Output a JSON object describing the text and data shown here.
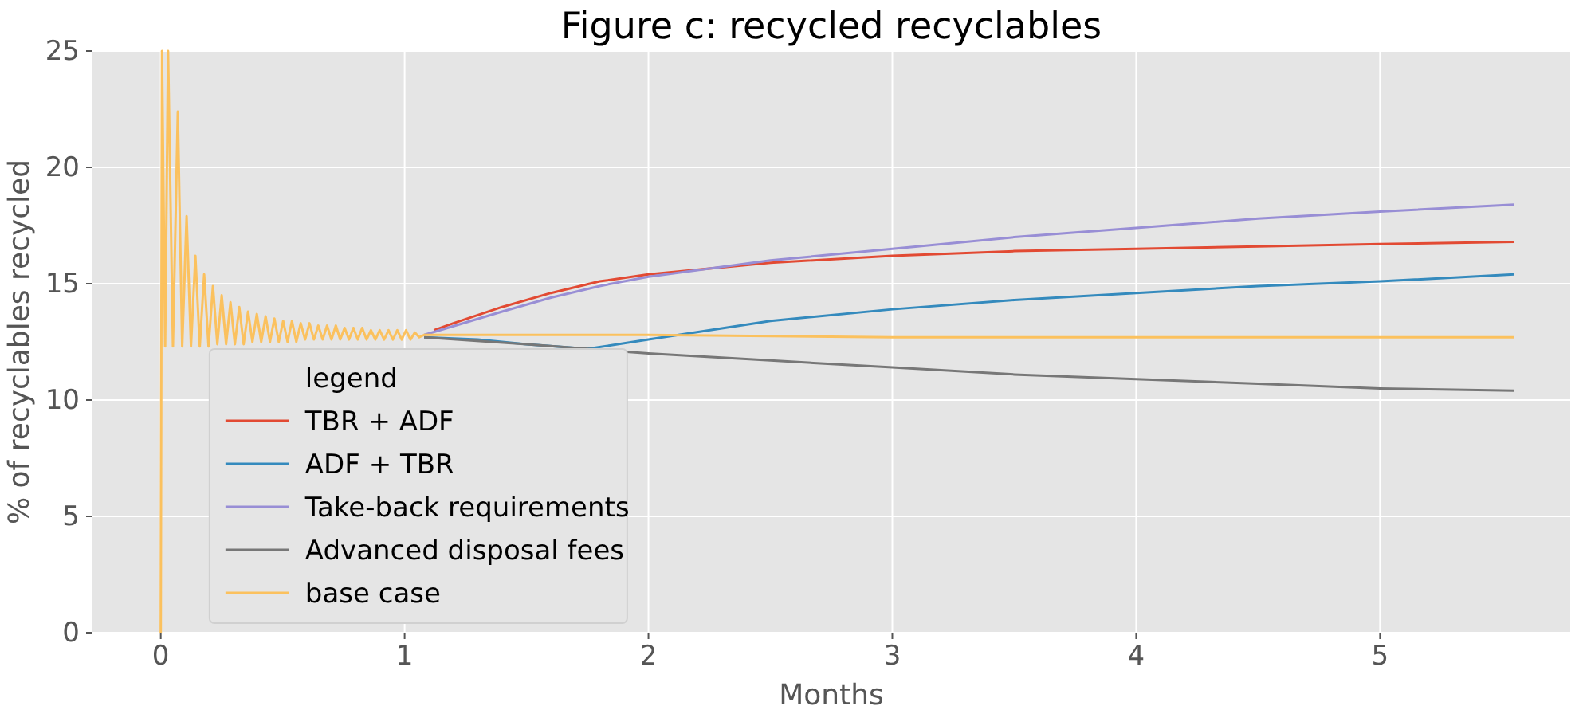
{
  "chart_data": {
    "type": "line",
    "title": "Figure c: recycled recyclables",
    "xlabel": "Months",
    "ylabel": "% of recyclables recycled",
    "legend_title": "legend",
    "xlim": [
      -0.28,
      5.78
    ],
    "ylim": [
      0,
      25
    ],
    "xticks": [
      0,
      1,
      2,
      3,
      4,
      5
    ],
    "yticks": [
      0,
      5,
      10,
      15,
      20,
      25
    ],
    "grid": true,
    "legend": "bottom left",
    "marker": "none",
    "line_style": "solid",
    "series": [
      {
        "name": "TBR + ADF",
        "color": "#e24a33",
        "x": [
          1.12,
          1.2,
          1.4,
          1.6,
          1.8,
          2.0,
          2.5,
          3.0,
          3.5,
          4.0,
          4.5,
          5.0,
          5.55
        ],
        "values": [
          13.0,
          13.3,
          14.0,
          14.6,
          15.1,
          15.4,
          15.9,
          16.2,
          16.4,
          16.5,
          16.6,
          16.7,
          16.8
        ]
      },
      {
        "name": "ADF + TBR",
        "color": "#348abd",
        "x": [
          1.08,
          1.3,
          1.5,
          1.75,
          2.0,
          2.5,
          3.0,
          3.5,
          4.0,
          4.5,
          5.0,
          5.55
        ],
        "values": [
          12.7,
          12.6,
          12.4,
          12.2,
          12.6,
          13.4,
          13.9,
          14.3,
          14.6,
          14.9,
          15.1,
          15.4
        ]
      },
      {
        "name": "Take-back requirements",
        "color": "#988ed5",
        "x": [
          1.08,
          1.4,
          1.6,
          1.8,
          2.0,
          2.5,
          3.0,
          3.5,
          4.0,
          4.5,
          5.0,
          5.55
        ],
        "values": [
          12.8,
          13.8,
          14.4,
          14.9,
          15.3,
          16.0,
          16.5,
          17.0,
          17.4,
          17.8,
          18.1,
          18.4
        ]
      },
      {
        "name": "Advanced disposal fees",
        "color": "#777777",
        "x": [
          1.08,
          1.5,
          2.0,
          2.5,
          3.0,
          3.5,
          4.0,
          4.5,
          5.0,
          5.55
        ],
        "values": [
          12.7,
          12.4,
          12.0,
          11.7,
          11.4,
          11.1,
          10.9,
          10.7,
          10.5,
          10.4
        ]
      },
      {
        "name": "base case",
        "color": "#fbc15e",
        "x": [
          0,
          0.005,
          0.018,
          0.03,
          0.05,
          0.07,
          0.088,
          0.106,
          0.124,
          0.142,
          0.16,
          0.178,
          0.196,
          0.214,
          0.232,
          0.25,
          0.268,
          0.286,
          0.304,
          0.322,
          0.34,
          0.358,
          0.376,
          0.394,
          0.412,
          0.43,
          0.448,
          0.466,
          0.484,
          0.502,
          0.52,
          0.538,
          0.556,
          0.574,
          0.592,
          0.61,
          0.628,
          0.646,
          0.664,
          0.682,
          0.7,
          0.718,
          0.736,
          0.754,
          0.772,
          0.79,
          0.808,
          0.826,
          0.844,
          0.862,
          0.88,
          0.898,
          0.916,
          0.934,
          0.952,
          0.97,
          0.988,
          1.006,
          1.024,
          1.042,
          1.06,
          1.08,
          1.5,
          2.0,
          3.0,
          4.0,
          5.0,
          5.55
        ],
        "values": [
          0,
          25,
          12.3,
          25,
          12.3,
          22.4,
          12.3,
          17.9,
          12.3,
          16.2,
          12.3,
          15.4,
          12.3,
          14.9,
          12.4,
          14.5,
          12.4,
          14.2,
          12.4,
          14.0,
          12.4,
          13.8,
          12.5,
          13.7,
          12.5,
          13.6,
          12.5,
          13.5,
          12.5,
          13.4,
          12.5,
          13.4,
          12.5,
          13.3,
          12.6,
          13.3,
          12.6,
          13.2,
          12.6,
          13.2,
          12.6,
          13.2,
          12.6,
          13.1,
          12.6,
          13.1,
          12.6,
          13.1,
          12.6,
          13.0,
          12.6,
          13.0,
          12.6,
          13.0,
          12.6,
          13.0,
          12.6,
          13.0,
          12.6,
          12.9,
          12.7,
          12.8,
          12.8,
          12.8,
          12.7,
          12.7,
          12.7,
          12.7
        ]
      }
    ]
  }
}
